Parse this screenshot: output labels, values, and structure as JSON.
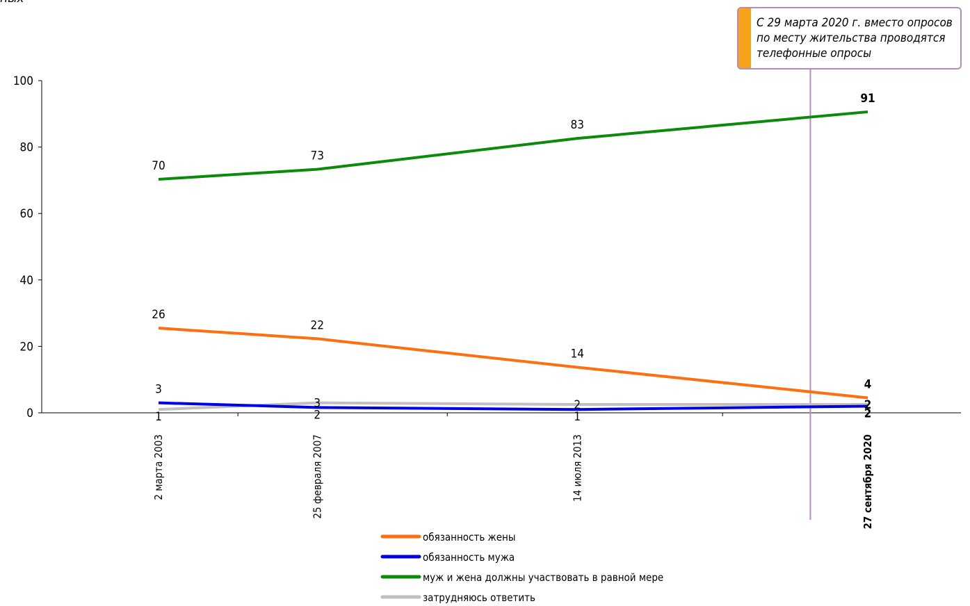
{
  "clipped_text": "ных",
  "annotation": {
    "text": "С 29 марта 2020 г. вместо опросов по месту жительства проводятся телефонные опросы",
    "border_color": "#b48cc0",
    "accent_color": "#f7a21b"
  },
  "chart_data": {
    "type": "line",
    "categories": [
      "2 марта 2003",
      "25 февраля 2007",
      "14 июля 2013",
      "27 сентября 2020"
    ],
    "x_positions_months": [
      0,
      47,
      124,
      210
    ],
    "ylim": [
      0,
      100
    ],
    "yticks": [
      0,
      20,
      40,
      60,
      80,
      100
    ],
    "grid": false,
    "legend_position": "bottom",
    "divider_at_month": 193,
    "series": [
      {
        "name": "обязанность жены",
        "color": "#ff6e0f",
        "values": [
          25.5,
          22.3,
          13.7,
          4.5
        ],
        "labels": [
          "26",
          "22",
          "14",
          "4"
        ],
        "label_pos": "above"
      },
      {
        "name": "обязанность мужа",
        "color": "#0000e6",
        "values": [
          3.0,
          1.6,
          1.0,
          2.0
        ],
        "labels": [
          "3",
          "2",
          "1",
          "2"
        ],
        "label_pos": [
          "above",
          "below",
          "below",
          "below"
        ]
      },
      {
        "name": "муж и жена должны участвовать в равной мере",
        "color": "#0b8a0b",
        "values": [
          70.3,
          73.3,
          82.6,
          90.6
        ],
        "labels": [
          "70",
          "73",
          "83",
          "91"
        ],
        "label_pos": "above"
      },
      {
        "name": "затрудняюсь ответить",
        "color": "#c0c0c0",
        "values": [
          1.0,
          3.0,
          2.5,
          2.5
        ],
        "labels": [
          "1",
          "3",
          "2",
          "2"
        ],
        "label_pos": [
          "below",
          "on",
          "on",
          "on"
        ]
      }
    ]
  }
}
